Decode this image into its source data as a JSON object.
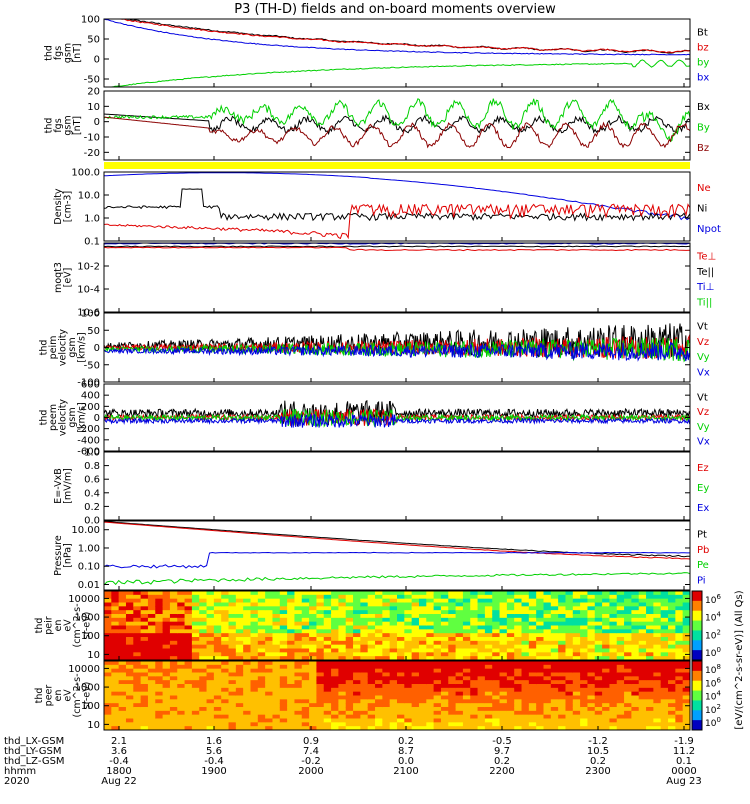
{
  "title": "P3 (TH-D) fields and on-board moments overview",
  "colors": {
    "black": "#000000",
    "red": "#e00000",
    "green": "#00d000",
    "blue": "#0000e0",
    "yellow": "#ffff00"
  },
  "chart_data": {
    "type": "line",
    "time_axis": {
      "ticks": [
        "1800",
        "1900",
        "2000",
        "2100",
        "2200",
        "2300",
        "0000"
      ],
      "dates": [
        "Aug 22",
        "Aug 23"
      ],
      "year": "2020",
      "hhmm_label": "hhmm",
      "start": "2020-08-22 17:48",
      "end": "2020-08-23 00:12"
    },
    "ephemeris": [
      {
        "label": "thd_LX-GSM",
        "values": [
          "2.1",
          "1.6",
          "0.9",
          "0.2",
          "-0.5",
          "-1.2",
          "-1.9"
        ]
      },
      {
        "label": "thd_LY-GSM",
        "values": [
          "3.6",
          "5.6",
          "7.4",
          "8.7",
          "9.7",
          "10.5",
          "11.2"
        ]
      },
      {
        "label": "thd_LZ-GSM",
        "values": [
          "-0.4",
          "-0.4",
          "-0.2",
          "0.0",
          "0.2",
          "0.2",
          "0.1"
        ]
      }
    ],
    "panels": [
      {
        "id": "fgs-gsm-total",
        "ylabel": [
          "thd",
          "fgs",
          "gsm",
          "[nT]"
        ],
        "ylim": [
          -70,
          100
        ],
        "yticks": [
          "100",
          "50",
          "0",
          "-50"
        ],
        "series": [
          {
            "name": "Bt",
            "color": "#000000"
          },
          {
            "name": "bz",
            "color": "#e00000"
          },
          {
            "name": "by",
            "color": "#00d000"
          },
          {
            "name": "bx",
            "color": "#0000e0"
          }
        ]
      },
      {
        "id": "fgs-gsm-components",
        "ylabel": [
          "thd",
          "fgs",
          "gsm",
          "[nT]"
        ],
        "ylim": [
          -25,
          20
        ],
        "yticks": [
          "20",
          "10",
          "0",
          "-10",
          "-20"
        ],
        "series": [
          {
            "name": "Bx",
            "color": "#000000"
          },
          {
            "name": "By",
            "color": "#00d000"
          },
          {
            "name": "Bz",
            "color": "#8b0000"
          }
        ]
      },
      {
        "id": "density",
        "ylabel": [
          "Density",
          "[cm-3]"
        ],
        "ylim": [
          0.1,
          100
        ],
        "yscale": "log",
        "yticks": [
          "100.0",
          "10.0",
          "1.0",
          "0.1"
        ],
        "series": [
          {
            "name": "Ne",
            "color": "#e00000"
          },
          {
            "name": "Ni",
            "color": "#000000"
          },
          {
            "name": "Npot",
            "color": "#0000e0"
          }
        ]
      },
      {
        "id": "temperature",
        "ylabel": [
          "moqt3",
          "[eV]"
        ],
        "ylim": [
          1e-06,
          1
        ],
        "yscale": "log",
        "yticks": [
          "10-2",
          "10-4",
          "10-6"
        ],
        "series": [
          {
            "name": "Te⊥",
            "color": "#e00000"
          },
          {
            "name": "Te||",
            "color": "#000000"
          },
          {
            "name": "Ti⊥",
            "color": "#0000e0"
          },
          {
            "name": "Ti||",
            "color": "#00d000"
          }
        ]
      },
      {
        "id": "ion-velocity",
        "ylabel": [
          "thd",
          "peim",
          "velocity",
          "gsm",
          "[km/s]"
        ],
        "ylim": [
          -100,
          100
        ],
        "yticks": [
          "100",
          "50",
          "0",
          "-50",
          "-100"
        ],
        "series": [
          {
            "name": "Vt",
            "color": "#000000"
          },
          {
            "name": "Vz",
            "color": "#e00000"
          },
          {
            "name": "Vy",
            "color": "#00d000"
          },
          {
            "name": "Vx",
            "color": "#0000e0"
          }
        ]
      },
      {
        "id": "electron-velocity",
        "ylabel": [
          "thd",
          "peem",
          "velocity",
          "gsm",
          "[km/s]"
        ],
        "ylim": [
          -600,
          600
        ],
        "yticks": [
          "600",
          "400",
          "200",
          "0",
          "-200",
          "-400",
          "-600"
        ],
        "series": [
          {
            "name": "Vt",
            "color": "#000000"
          },
          {
            "name": "Vz",
            "color": "#e00000"
          },
          {
            "name": "Vy",
            "color": "#00d000"
          },
          {
            "name": "Vx",
            "color": "#0000e0"
          }
        ]
      },
      {
        "id": "e-field",
        "ylabel": [
          "E=-VxB",
          "[mV/m]"
        ],
        "ylim": [
          0,
          1
        ],
        "yticks": [
          "1.0",
          "0.8",
          "0.6",
          "0.4",
          "0.2",
          "0.0"
        ],
        "series": [
          {
            "name": "Ez",
            "color": "#e00000"
          },
          {
            "name": "Ey",
            "color": "#00d000"
          },
          {
            "name": "Ex",
            "color": "#0000e0"
          }
        ]
      },
      {
        "id": "pressure",
        "ylabel": [
          "Pressure",
          "[nPa]"
        ],
        "ylim": [
          0.005,
          30
        ],
        "yscale": "log",
        "yticks": [
          "10.00",
          "1.00",
          "0.10",
          "0.01"
        ],
        "series": [
          {
            "name": "Pt",
            "color": "#000000"
          },
          {
            "name": "Pb",
            "color": "#e00000"
          },
          {
            "name": "Pe",
            "color": "#00d000"
          },
          {
            "name": "Pi",
            "color": "#0000e0"
          }
        ]
      },
      {
        "id": "ion-eflux",
        "type": "heatmap",
        "ylabel": [
          "thd",
          "peir",
          "en",
          "eV",
          "(cm^2-s-",
          "sr-eV)"
        ],
        "ylim": [
          5,
          25000
        ],
        "yscale": "log",
        "yticks": [
          "10000",
          "1000",
          "100",
          "10"
        ]
      },
      {
        "id": "electron-eflux",
        "type": "heatmap",
        "ylabel": [
          "thd",
          "peer",
          "en",
          "eV",
          "(cm^2-s-",
          "sr-eV)"
        ],
        "ylim": [
          5,
          25000
        ],
        "yscale": "log",
        "yticks": [
          "10000",
          "1000",
          "100",
          "10"
        ]
      }
    ],
    "colorbar": {
      "label": "[eV/(cm^2-s-sr-eV)] (All Qs)",
      "upper_ticks": [
        "10^6",
        "10^4",
        "10^2",
        "10^0"
      ],
      "lower_ticks": [
        "10^8",
        "10^6",
        "10^4",
        "10^2",
        "10^0"
      ]
    }
  }
}
